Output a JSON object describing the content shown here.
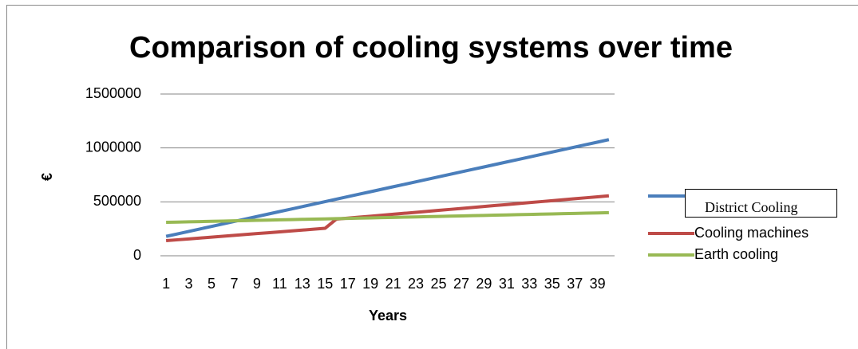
{
  "chart_data": {
    "type": "line",
    "title": "Comparison of cooling systems over time",
    "x_label": "Years",
    "y_label": "€",
    "categories": [
      1,
      null,
      3,
      null,
      5,
      null,
      7,
      null,
      9,
      null,
      11,
      null,
      13,
      null,
      15,
      null,
      17,
      null,
      19,
      null,
      21,
      null,
      23,
      null,
      25,
      null,
      27,
      null,
      29,
      null,
      31,
      null,
      33,
      null,
      35,
      null,
      37,
      null,
      39,
      null
    ],
    "series": [
      {
        "name": "District Cooling",
        "color": "#4a7ebb",
        "values": [
          180000,
          203000,
          226000,
          249000,
          272000,
          295000,
          318000,
          341000,
          364000,
          387000,
          410000,
          433000,
          456000,
          479000,
          502000,
          525000,
          548000,
          571000,
          594000,
          617000,
          640000,
          663000,
          686000,
          709000,
          732000,
          755000,
          778000,
          801000,
          824000,
          847000,
          870000,
          893000,
          916000,
          939000,
          962000,
          985000,
          1008000,
          1031000,
          1054000,
          1077000
        ]
      },
      {
        "name": "Cooling machines",
        "color": "#be4b48",
        "values": [
          140000,
          148200,
          156400,
          164600,
          172800,
          181000,
          189200,
          197400,
          205600,
          213800,
          222000,
          230200,
          238400,
          246600,
          254800,
          340000,
          349000,
          358000,
          367000,
          376000,
          385000,
          394000,
          403000,
          412000,
          421000,
          430000,
          439000,
          448000,
          457000,
          466000,
          475000,
          484000,
          493000,
          502000,
          511000,
          520000,
          529000,
          538000,
          547000,
          556000
        ]
      },
      {
        "name": "Earth cooling",
        "color": "#98b954",
        "values": [
          310000,
          312300,
          314600,
          316900,
          319200,
          321500,
          323800,
          326100,
          328400,
          330700,
          333000,
          335300,
          337600,
          339900,
          342200,
          344500,
          346800,
          349100,
          351400,
          353700,
          356000,
          358300,
          360600,
          362900,
          365200,
          367500,
          369800,
          372100,
          374400,
          376700,
          379000,
          381300,
          383600,
          385900,
          388200,
          390500,
          392800,
          395100,
          397400,
          399700
        ]
      }
    ],
    "ylim": [
      0,
      1500000
    ],
    "yticks": [
      0,
      500000,
      1000000,
      1500000
    ],
    "grid": true,
    "legend": "right"
  }
}
